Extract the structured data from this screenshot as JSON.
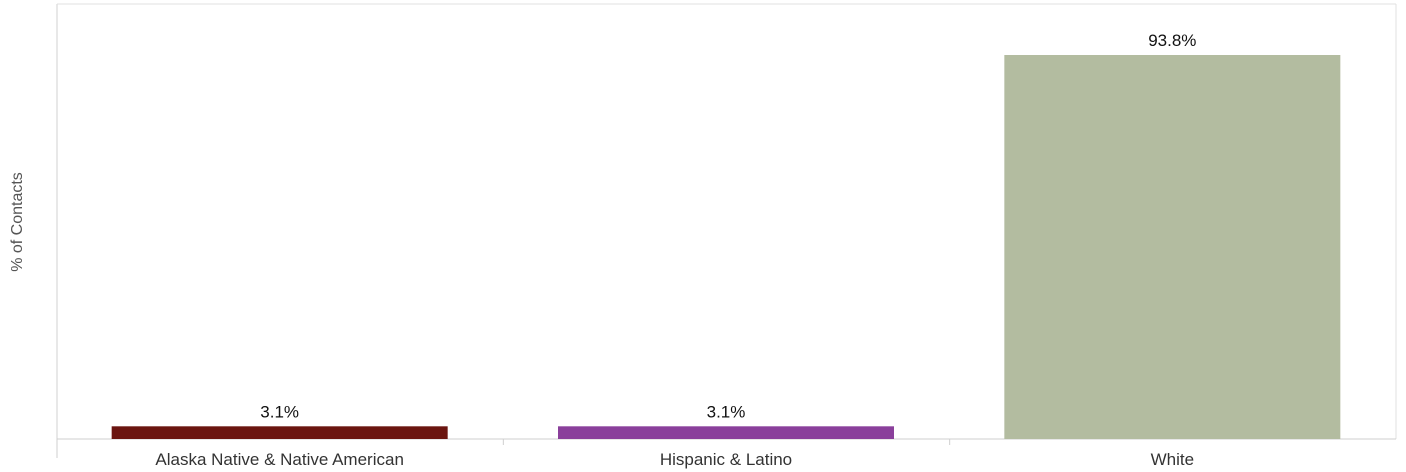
{
  "chart_data": {
    "type": "bar",
    "title": "",
    "xlabel": "",
    "ylabel": "% of Contacts",
    "categories": [
      "Alaska Native & Native American",
      "Hispanic & Latino",
      "White"
    ],
    "values": [
      3.1,
      3.1,
      93.8
    ],
    "data_labels": [
      "3.1%",
      "3.1%",
      "93.8%"
    ],
    "colors": [
      "#6b1510",
      "#8a3f9b",
      "#b3bca0"
    ],
    "ylim": [
      0,
      100
    ],
    "grid": false,
    "legend": "none"
  }
}
